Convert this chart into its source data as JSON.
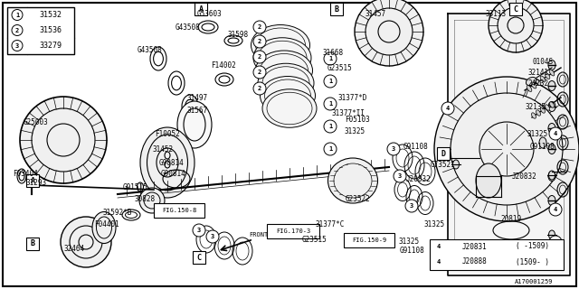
{
  "bg_color": "#ffffff",
  "line_color": "#000000",
  "text_color": "#000000",
  "legend_items": [
    {
      "num": "1",
      "code": "31532"
    },
    {
      "num": "2",
      "code": "31536"
    },
    {
      "num": "3",
      "code": "33279"
    }
  ],
  "bottom_table_rows": [
    {
      "col1": "J20831",
      "col2": "( -1509)"
    },
    {
      "col1": "J20888",
      "col2": "(1509- )"
    }
  ]
}
